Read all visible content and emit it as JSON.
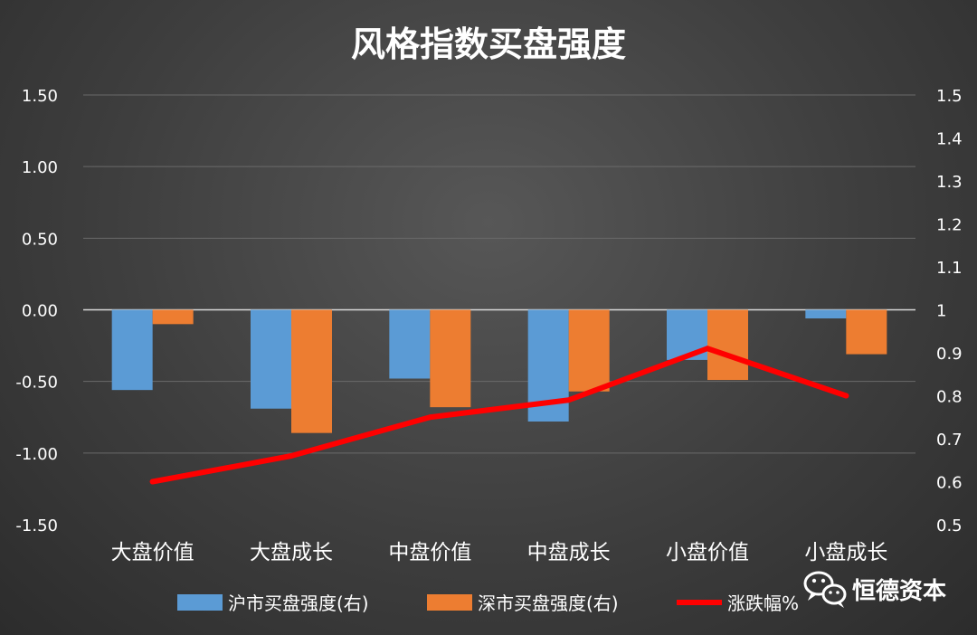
{
  "chart_data": {
    "type": "bar",
    "title": "风格指数买盘强度",
    "categories": [
      "大盘价值",
      "大盘成长",
      "中盘价值",
      "中盘成长",
      "小盘价值",
      "小盘成长"
    ],
    "series": [
      {
        "name": "沪市买盘强度(右)",
        "kind": "bar",
        "values": [
          -0.56,
          -0.69,
          -0.48,
          -0.78,
          -0.35,
          -0.06
        ],
        "color": "#5b9bd5"
      },
      {
        "name": "深市买盘强度(右)",
        "kind": "bar",
        "values": [
          -0.1,
          -0.86,
          -0.68,
          -0.57,
          -0.49,
          -0.31
        ],
        "color": "#ed7d31"
      },
      {
        "name": "涨跌幅%",
        "kind": "line",
        "axis": "right",
        "values": [
          0.6,
          0.66,
          0.75,
          0.79,
          0.91,
          0.8
        ],
        "color": "#ff0000"
      }
    ],
    "left_axis": {
      "min": -1.5,
      "max": 1.5,
      "ticks": [
        "1.50",
        "1.00",
        "0.50",
        "0.00",
        "-0.50",
        "-1.00",
        "-1.50"
      ]
    },
    "right_axis": {
      "min": 0.5,
      "max": 1.5,
      "ticks": [
        "1.5",
        "1.4",
        "1.3",
        "1.2",
        "1.1",
        "1",
        "0.9",
        "0.8",
        "0.7",
        "0.6",
        "0.5"
      ]
    },
    "grid": true,
    "legend_position": "bottom"
  },
  "colors": {
    "text": "#ffffff",
    "grid": "#6a6a6a",
    "zero_line": "#d9d9d9"
  },
  "watermark": {
    "text": "恒德资本",
    "icon": "wechat-icon"
  }
}
